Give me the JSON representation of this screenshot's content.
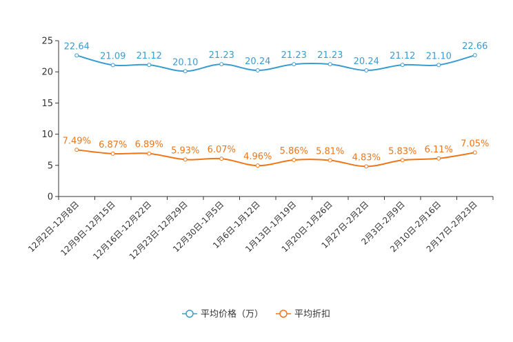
{
  "chart_data": {
    "type": "line",
    "title": "",
    "xlabel": "",
    "ylabel": "",
    "ylim": [
      0,
      25
    ],
    "yticks": [
      0,
      5,
      10,
      15,
      20,
      25
    ],
    "categories": [
      "12月2日-12月8日",
      "12月9日-12月15日",
      "12月16日-12月22日",
      "12月23日-12月29日",
      "12月30日-1月5日",
      "1月6日-1月12日",
      "1月13日-1月19日",
      "1月20日-1月26日",
      "1月27日-2月2日",
      "2月3日-2月9日",
      "2月10日-2月16日",
      "2月17日-2月23日"
    ],
    "series": [
      {
        "name": "平均价格（万）",
        "color": "#3a9bd0",
        "values": [
          22.64,
          21.09,
          21.12,
          20.1,
          21.23,
          20.24,
          21.23,
          21.23,
          20.24,
          21.12,
          21.1,
          22.66
        ],
        "labels": [
          "22.64",
          "21.09",
          "21.12",
          "20.10",
          "21.23",
          "20.24",
          "21.23",
          "21.23",
          "20.24",
          "21.12",
          "21.10",
          "22.66"
        ]
      },
      {
        "name": "平均折扣",
        "color": "#f07516",
        "values": [
          7.49,
          6.87,
          6.89,
          5.93,
          6.07,
          4.96,
          5.86,
          5.81,
          4.83,
          5.83,
          6.11,
          7.05
        ],
        "labels": [
          "7.49%",
          "6.87%",
          "6.89%",
          "5.93%",
          "6.07%",
          "4.96%",
          "5.86%",
          "5.81%",
          "4.83%",
          "5.83%",
          "6.11%",
          "7.05%"
        ]
      }
    ],
    "legend": "bottom-center"
  }
}
